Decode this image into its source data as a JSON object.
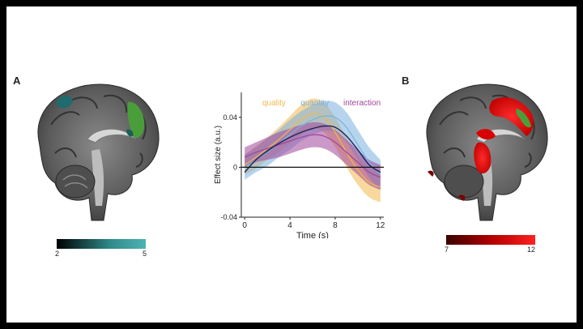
{
  "panels": {
    "a_label": "A",
    "b_label": "B"
  },
  "colorbar_a": {
    "min": "2",
    "max": "5",
    "colors": [
      "#000000",
      "#2f8a8a",
      "#4fb3b3"
    ]
  },
  "colorbar_b": {
    "min": "7",
    "max": "12",
    "colors": [
      "#3a0000",
      "#b00000",
      "#ff2020"
    ]
  },
  "chart_data": {
    "type": "line",
    "xlabel": "Time (s)",
    "ylabel": "Effect size (a.u.)",
    "xlim": [
      -0.3,
      12.3
    ],
    "ylim": [
      -0.04,
      0.06
    ],
    "x_ticks": [
      "0",
      "4",
      "8",
      "12"
    ],
    "x_tick_values": [
      0,
      4,
      8,
      12
    ],
    "y_ticks": [
      "0.04",
      "0",
      "-0.04"
    ],
    "y_tick_values": [
      0.04,
      0,
      -0.04
    ],
    "legend": [
      {
        "label": "quality",
        "color": "#f2b84b"
      },
      {
        "label": "quantity",
        "color": "#7ab1de"
      },
      {
        "label": "interaction",
        "color": "#a0459a"
      }
    ],
    "x": [
      0,
      1,
      2,
      3,
      4,
      5,
      6,
      7,
      8,
      9,
      10,
      11,
      12
    ],
    "series": [
      {
        "name": "quality",
        "color": "#f2b84b",
        "mean": [
          0.002,
          0.008,
          0.015,
          0.022,
          0.03,
          0.038,
          0.043,
          0.04,
          0.028,
          0.012,
          -0.002,
          -0.012,
          -0.016
        ],
        "upper": [
          0.01,
          0.017,
          0.024,
          0.032,
          0.041,
          0.05,
          0.055,
          0.052,
          0.04,
          0.024,
          0.01,
          0.0,
          -0.004
        ],
        "lower": [
          -0.006,
          -0.001,
          0.006,
          0.012,
          0.019,
          0.026,
          0.031,
          0.028,
          0.016,
          0.0,
          -0.014,
          -0.024,
          -0.028
        ]
      },
      {
        "name": "quantity",
        "color": "#7ab1de",
        "mean": [
          0.0,
          0.006,
          0.012,
          0.019,
          0.026,
          0.033,
          0.038,
          0.041,
          0.04,
          0.032,
          0.018,
          0.004,
          -0.006
        ],
        "upper": [
          0.01,
          0.016,
          0.023,
          0.03,
          0.038,
          0.045,
          0.05,
          0.053,
          0.052,
          0.044,
          0.03,
          0.016,
          0.006
        ],
        "lower": [
          -0.01,
          -0.004,
          0.001,
          0.008,
          0.014,
          0.021,
          0.026,
          0.029,
          0.028,
          0.02,
          0.006,
          -0.008,
          -0.018
        ]
      },
      {
        "name": "interaction",
        "color": "#a0459a",
        "mean": [
          0.008,
          0.012,
          0.015,
          0.018,
          0.021,
          0.024,
          0.026,
          0.025,
          0.02,
          0.012,
          0.004,
          -0.004,
          -0.008
        ],
        "upper": [
          0.016,
          0.02,
          0.024,
          0.028,
          0.031,
          0.034,
          0.036,
          0.035,
          0.03,
          0.022,
          0.014,
          0.006,
          0.002
        ],
        "lower": [
          0.0,
          0.004,
          0.006,
          0.008,
          0.011,
          0.014,
          0.016,
          0.015,
          0.01,
          0.002,
          -0.006,
          -0.014,
          -0.018
        ]
      }
    ],
    "fit_line": {
      "color": "#1c2452",
      "values": [
        -0.004,
        0.006,
        0.013,
        0.019,
        0.024,
        0.028,
        0.031,
        0.033,
        0.032,
        0.025,
        0.014,
        0.002,
        -0.004
      ]
    }
  }
}
